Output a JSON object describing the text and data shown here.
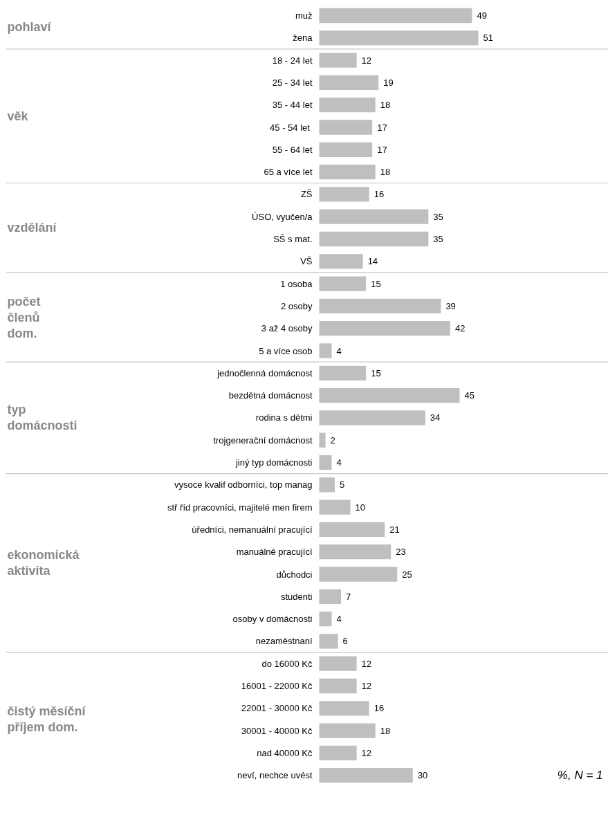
{
  "chart_data": {
    "type": "bar",
    "orientation": "horizontal",
    "data_labels": true,
    "categories": [
      "muž",
      "žena",
      "18 - 24 let",
      "25 - 34 let",
      "35 - 44 let",
      "45 - 54  let",
      "55 - 64 let",
      "65 a více let",
      "ZŠ",
      "ÚSO, vyučen/a",
      "SŠ s mat.",
      "VŠ",
      "1 osoba",
      "2 osoby",
      "3 až 4 osoby",
      "5 a více osob",
      "jednočlenná domácnost",
      "bezdětná domácnost",
      "rodina s dětmi",
      "trojgenerační domácnost",
      "jiný typ domácnosti",
      "vysoce kvalif odborníci, top manag",
      "stř říd pracovníci, majitelé men firem",
      "úředníci, nemanuální pracující",
      "manuálně pracující",
      "důchodci",
      "studenti",
      "osoby v domácnosti",
      "nezaměstnaní",
      "do 16000 Kč",
      "16001 - 22000 Kč",
      "22001 - 30000 Kč",
      "30001 - 40000 Kč",
      "nad 40000 Kč",
      "neví, nechce uvést"
    ],
    "values": [
      49,
      51,
      12,
      19,
      18,
      17,
      17,
      18,
      16,
      35,
      35,
      14,
      15,
      39,
      42,
      4,
      15,
      45,
      34,
      2,
      4,
      5,
      10,
      21,
      23,
      25,
      7,
      4,
      6,
      12,
      12,
      16,
      18,
      12,
      30
    ],
    "color": "#bfbfbf",
    "annotations": [
      "pohlaví",
      "věk",
      "vzdělání",
      "počet\nčlenů\ndom.",
      "typ\ndomácnosti",
      "ekonomická\naktivita",
      "čistý měsíční\npříjem dom.",
      "%, N = 1"
    ]
  }
}
